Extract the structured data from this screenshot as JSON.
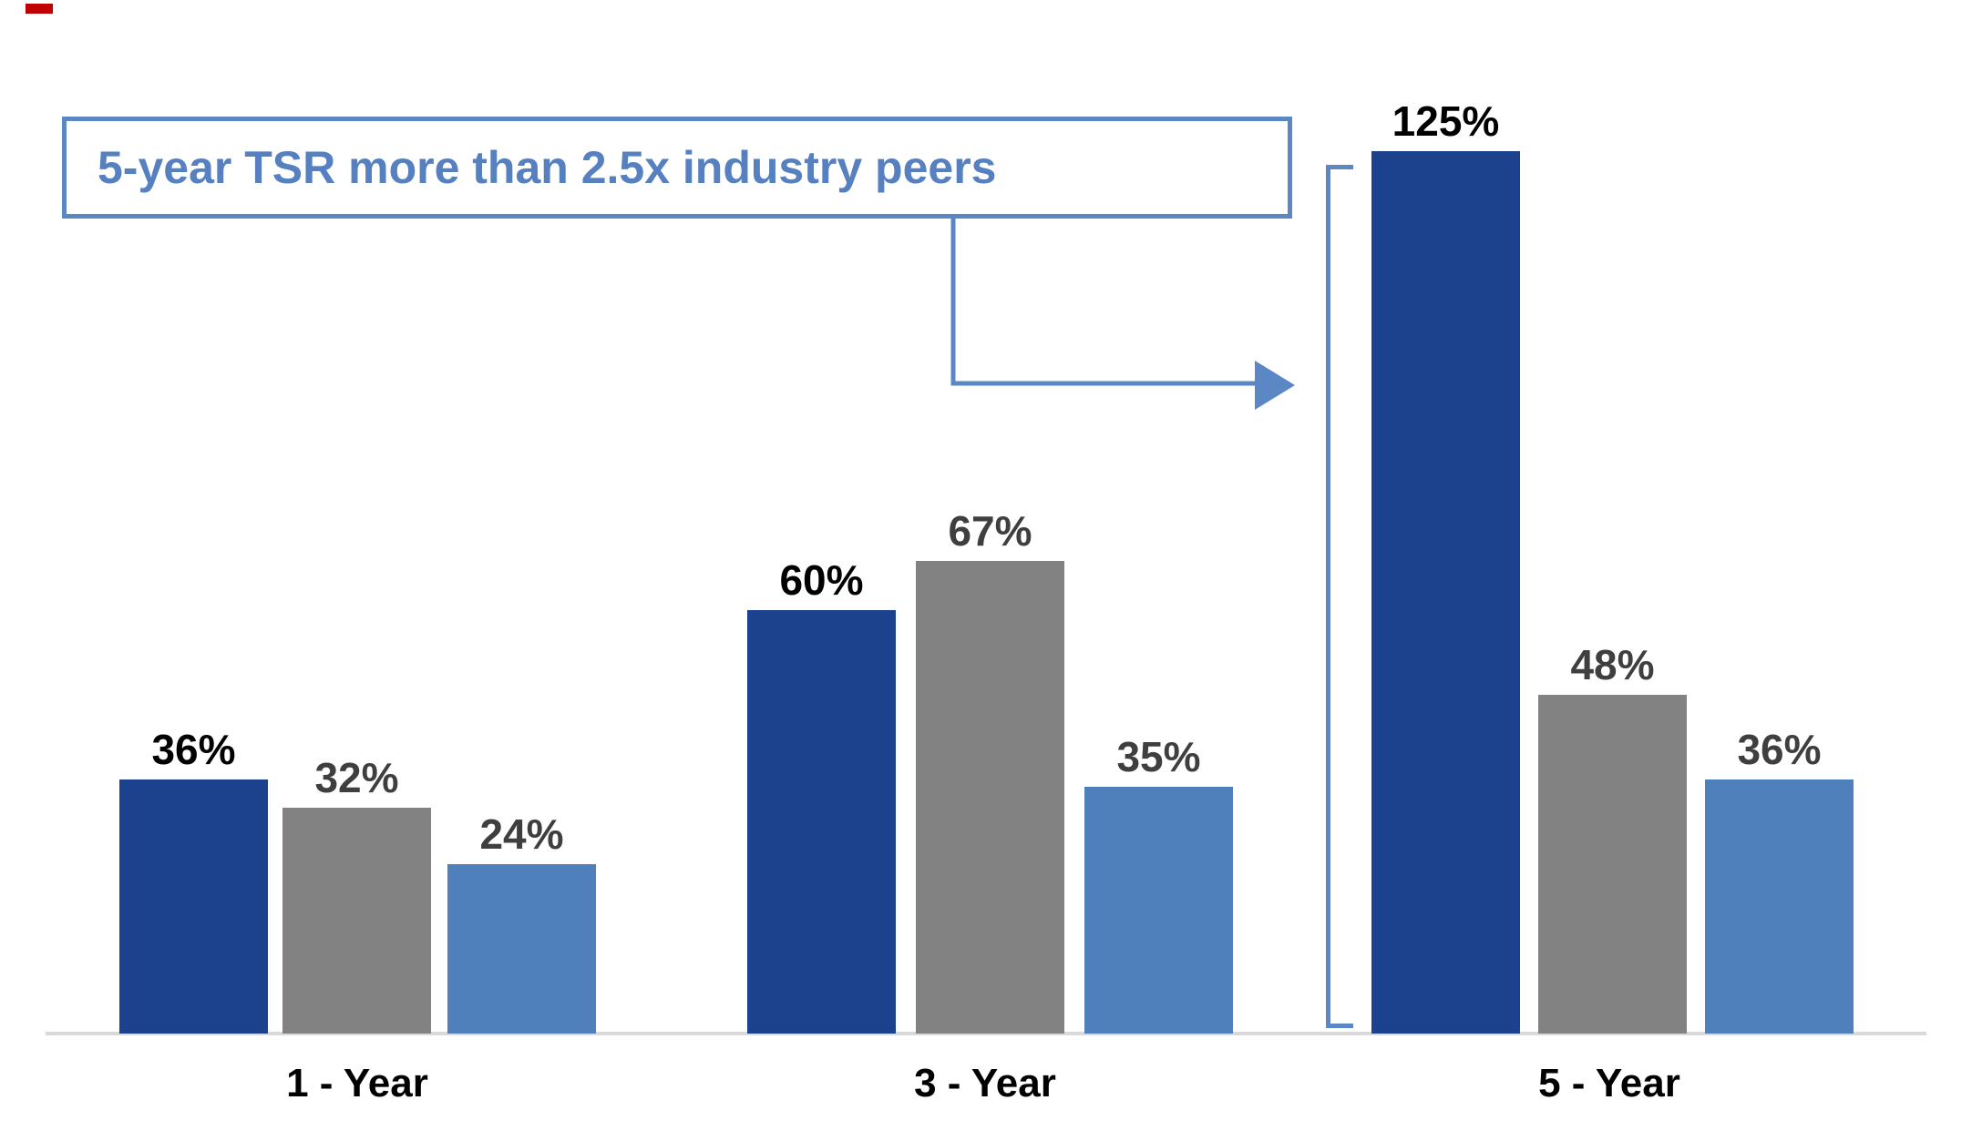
{
  "callout": {
    "text": "5-year TSR more than 2.5x industry peers"
  },
  "chart_data": {
    "type": "bar",
    "title": "",
    "categories": [
      "1 - Year",
      "3 - Year",
      "5 - Year"
    ],
    "series": [
      {
        "color": "#1C428E",
        "label_color": "#000000",
        "values": [
          36,
          60,
          125
        ],
        "labels": [
          "36%",
          "60%",
          "125%"
        ]
      },
      {
        "color": "#828282",
        "label_color": "#3F3F3F",
        "values": [
          32,
          67,
          48
        ],
        "labels": [
          "32%",
          "67%",
          "48%"
        ]
      },
      {
        "color": "#5080BC",
        "label_color": "#3F3F3F",
        "values": [
          24,
          35,
          36
        ],
        "labels": [
          "24%",
          "35%",
          "36%"
        ]
      }
    ],
    "value_suffix": "%",
    "ylim": [
      0,
      130
    ],
    "xlabel": "",
    "ylabel": "",
    "grid": "off",
    "legend": "none",
    "axis_color": "#D9D9D9",
    "accent_color": "#5B87C4",
    "annotation": "5-year TSR more than 2.5x industry peers"
  }
}
